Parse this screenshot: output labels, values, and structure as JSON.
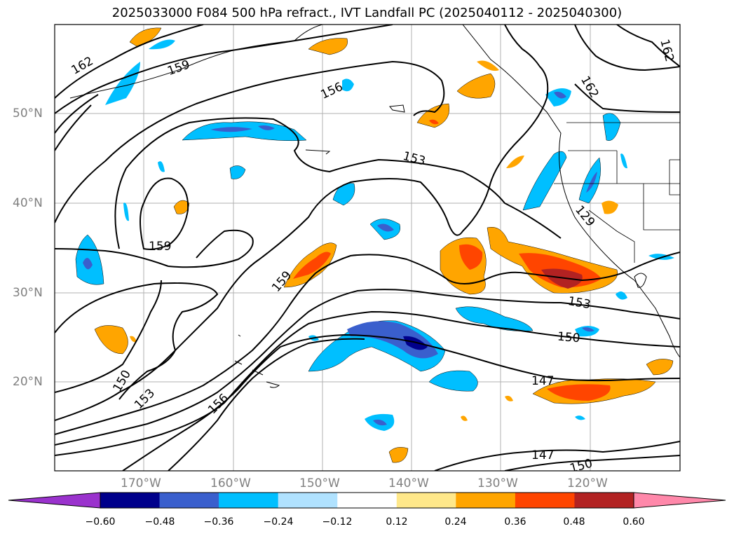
{
  "title": "2025033000 F084 500 hPa refract., IVT Landfall PC (2025040112 - 2025040300)",
  "lat_labels": [
    "50°N",
    "40°N",
    "30°N",
    "20°N"
  ],
  "lon_labels": [
    "170°W",
    "160°W",
    "150°W",
    "140°W",
    "130°W",
    "120°W"
  ],
  "contour_labels": [
    "162",
    "159",
    "156",
    "153",
    "162",
    "162",
    "159",
    "159",
    "129",
    "153",
    "150",
    "150",
    "153",
    "156",
    "147",
    "147",
    "150"
  ],
  "colorbar": {
    "ticks": [
      "−0.60",
      "−0.48",
      "−0.36",
      "−0.24",
      "−0.12",
      "0.12",
      "0.24",
      "0.36",
      "0.48",
      "0.60"
    ],
    "colors": [
      "#9a32cd",
      "#00008b",
      "#3a5fcd",
      "#00bfff",
      "#b0e2ff",
      "#ffffff",
      "#ffe88a",
      "#ffa500",
      "#ff4500",
      "#b22222",
      "#ff88aa"
    ]
  }
}
